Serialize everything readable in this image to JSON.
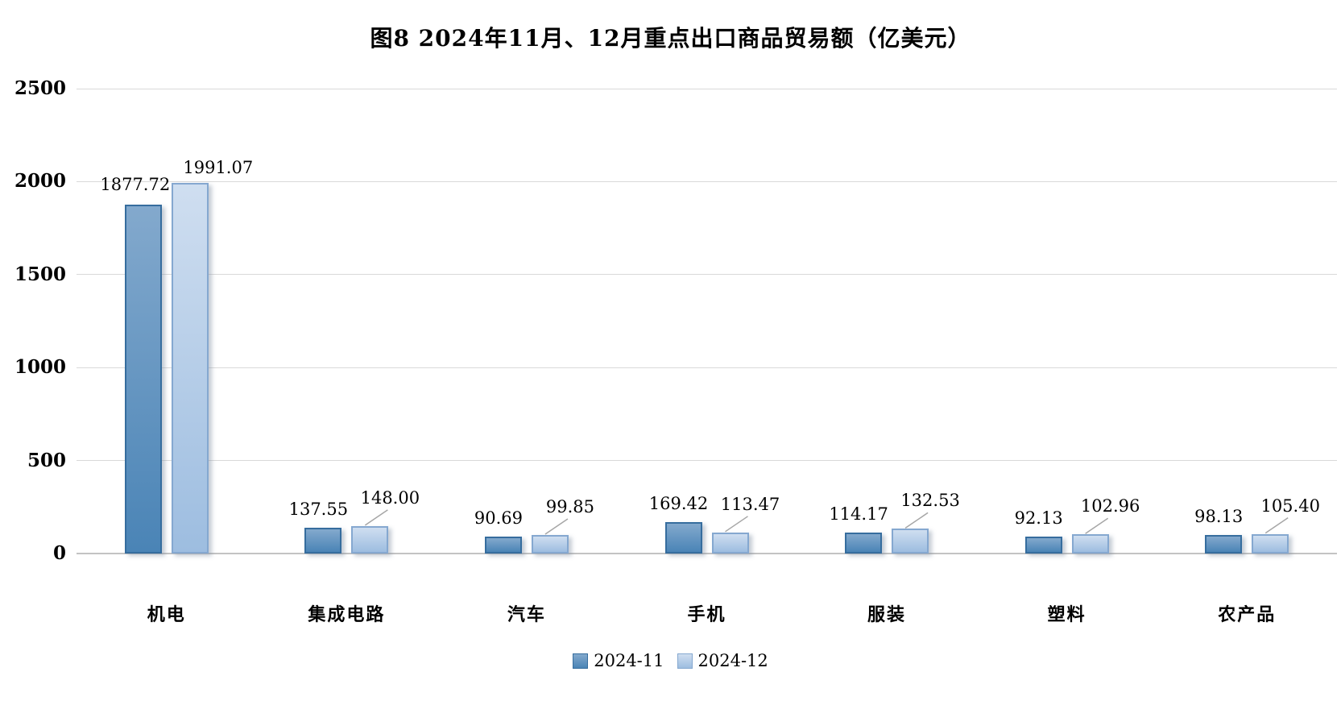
{
  "title": "图8 2024年11月、12月重点出口商品贸易额（亿美元）",
  "chart_data": {
    "type": "bar",
    "categories": [
      "机电",
      "集成电路",
      "汽车",
      "手机",
      "服装",
      "塑料",
      "农产品"
    ],
    "series": [
      {
        "name": "2024-11",
        "values": [
          1877.72,
          137.55,
          90.69,
          169.42,
          114.17,
          92.13,
          98.13
        ],
        "value_labels": [
          "1877.72",
          "137.55",
          "90.69",
          "169.42",
          "114.17",
          "92.13",
          "98.13"
        ]
      },
      {
        "name": "2024-12",
        "values": [
          1991.07,
          148.0,
          99.85,
          113.47,
          132.53,
          102.96,
          105.4
        ],
        "value_labels": [
          "1991.07",
          "148.00",
          "99.85",
          "113.47",
          "132.53",
          "102.96",
          "105.40"
        ]
      }
    ],
    "ylim": [
      0,
      2500
    ],
    "yticks": [
      0,
      500,
      1000,
      1500,
      2000,
      2500
    ],
    "ytick_labels": [
      "0",
      "500",
      "1000",
      "1500",
      "2000",
      "2500"
    ],
    "grid": true,
    "legend_position": "bottom",
    "colors": {
      "series1_top": "#83a9cd",
      "series1_bottom": "#4a84b6",
      "series1_border": "#366d9e",
      "series2_top": "#cfdef0",
      "series2_bottom": "#9dbde0",
      "series2_border": "#85a8d0",
      "gridline": "#d9d9d9",
      "baseline": "#c3c3c3",
      "leader_line": "#a6a6a6",
      "text": "#000000"
    },
    "label_layout": {
      "default": {
        "s0": {
          "dx": -6,
          "gap": 10,
          "leader": false
        },
        "s1": {
          "dx": 25,
          "gap": 22,
          "leader": true
        }
      },
      "overrides": {
        "0": {
          "s0": {
            "dx": -10,
            "gap": 12,
            "leader": false
          },
          "s1": {
            "dx": 35,
            "gap": 6,
            "leader": false
          }
        }
      }
    }
  }
}
